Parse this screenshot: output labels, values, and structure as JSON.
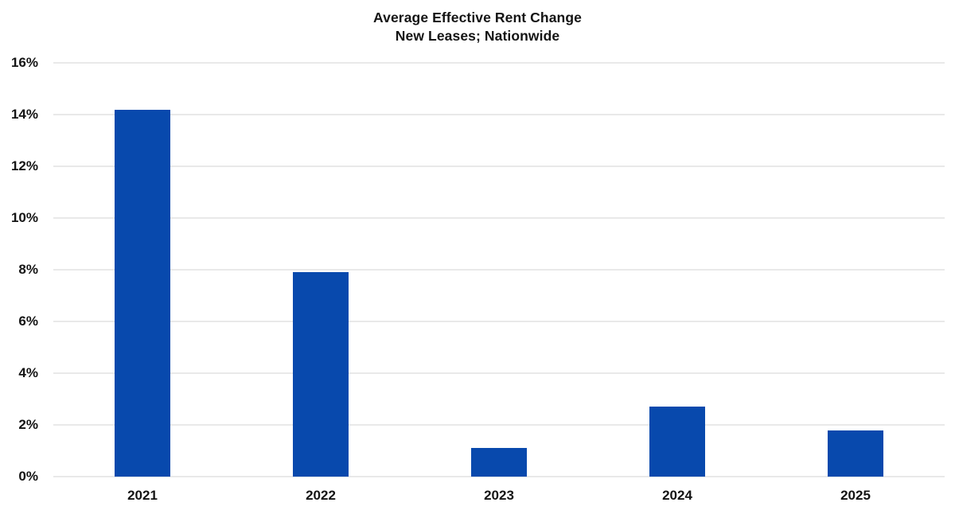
{
  "chart_data": {
    "type": "bar",
    "title": "Average Effective Rent Change",
    "subtitle": "New Leases; Nationwide",
    "categories": [
      "2021",
      "2022",
      "2023",
      "2024",
      "2025"
    ],
    "values": [
      14.2,
      7.9,
      1.1,
      2.7,
      1.8
    ],
    "xlabel": "",
    "ylabel": "",
    "ylim": [
      0,
      16
    ],
    "yticks": [
      {
        "label": "0%",
        "value": 0
      },
      {
        "label": "2%",
        "value": 2
      },
      {
        "label": "4%",
        "value": 4
      },
      {
        "label": "6%",
        "value": 6
      },
      {
        "label": "8%",
        "value": 8
      },
      {
        "label": "10%",
        "value": 10
      },
      {
        "label": "12%",
        "value": 12
      },
      {
        "label": "14%",
        "value": 14
      },
      {
        "label": "16%",
        "value": 16
      }
    ],
    "grid": true,
    "legend_position": "none",
    "bar_color": "#0849ad",
    "grid_color": "#e9e9e9",
    "text_color": "#141414",
    "background_color": "#ffffff"
  }
}
